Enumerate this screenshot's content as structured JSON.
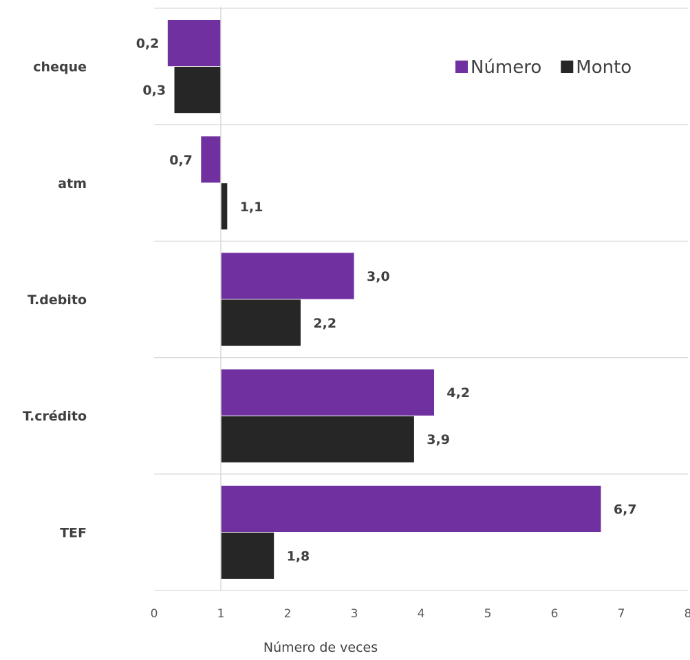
{
  "chart_data": {
    "type": "bar",
    "orientation": "horizontal",
    "categories": [
      "cheque",
      "atm",
      "T.debito",
      "T.crédito",
      "TEF"
    ],
    "series": [
      {
        "name": "Número",
        "color": "#7030a0",
        "values": [
          0.2,
          0.7,
          3.0,
          4.2,
          6.7
        ],
        "labels": [
          "0,2",
          "0,7",
          "3,0",
          "4,2",
          "6,7"
        ]
      },
      {
        "name": "Monto",
        "color": "#262626",
        "values": [
          0.3,
          1.1,
          2.2,
          3.9,
          1.8
        ],
        "labels": [
          "0,3",
          "1,1",
          "2,2",
          "3,9",
          "1,8"
        ]
      }
    ],
    "bar_origin": 1,
    "xlim": [
      0,
      8
    ],
    "xticks": [
      0,
      1,
      2,
      3,
      4,
      5,
      6,
      7,
      8
    ],
    "xlabel": "Número de veces",
    "ylabel": "",
    "title": "",
    "grid": "horizontal category separators",
    "legend_position": "top-right"
  }
}
